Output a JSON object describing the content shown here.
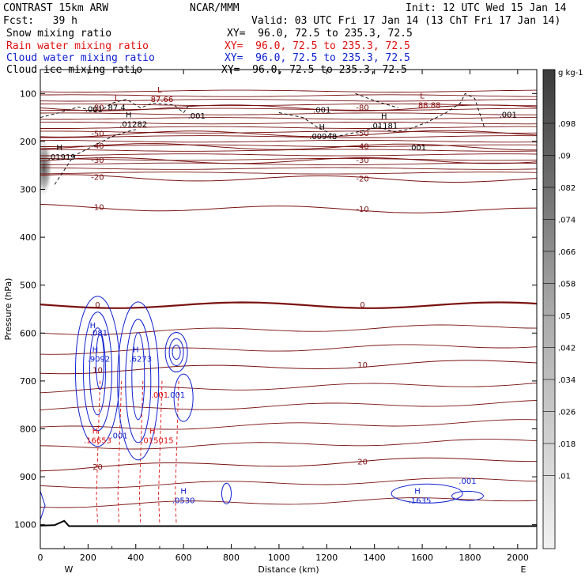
{
  "header": {
    "model": "CONTRAST 15km ARW",
    "source": "NCAR/MMM",
    "init": "Init: 12 UTC Wed 15 Jan 14",
    "fcst": "Fcst:   39 h",
    "valid": "Valid: 03 UTC Fri 17 Jan 14 (13 ChT Fri 17 Jan 14)",
    "fields": [
      {
        "label": "Snow mixing ratio",
        "xy": "XY=  96.0, 72.5 to 235.3, 72.5",
        "color": "#000000"
      },
      {
        "label": "Rain water mixing ratio",
        "xy": "XY=  96.0, 72.5 to 235.3, 72.5",
        "color": "#e01010"
      },
      {
        "label": "Cloud water mixing ratio",
        "xy": "XY=  96.0, 72.5 to 235.3, 72.5",
        "color": "#1020d0"
      },
      {
        "label": "Cloud ice mixing ratio",
        "xy": "XY=  96.0, 72.5 to 235.3, 72.5",
        "color": "#000000"
      }
    ]
  },
  "chart_data": {
    "type": "cross-section contour",
    "xlabel": "Distance (km)",
    "ylabel": "Pressure (hPa)",
    "xlim": [
      0,
      2080
    ],
    "ylim_pressure": [
      1050,
      50
    ],
    "x_ticks": [
      0,
      200,
      400,
      600,
      800,
      1000,
      1200,
      1400,
      1600,
      1800,
      2000
    ],
    "y_ticks": [
      100,
      200,
      300,
      400,
      500,
      600,
      700,
      800,
      900,
      1000
    ],
    "west_label": "W",
    "east_label": "E",
    "colorbar": {
      "units": "g kg-1",
      "labels": [
        ".098",
        ".09",
        ".082",
        ".074",
        ".066",
        ".058",
        ".05",
        ".042",
        ".034",
        ".026",
        ".018",
        ".01"
      ]
    },
    "temperature_isotherms_pressure": [
      {
        "label": "-80",
        "p_left": 130,
        "p_right": 130
      },
      {
        "label": "-50",
        "p_left": 185,
        "p_right": 183
      },
      {
        "label": "-40",
        "p_left": 210,
        "p_right": 212
      },
      {
        "label": "-30",
        "p_left": 240,
        "p_right": 240
      },
      {
        "label": "-20",
        "p_left": 275,
        "p_right": 280
      },
      {
        "label": "-10",
        "p_left": 337,
        "p_right": 345
      },
      {
        "label": "0",
        "p_left": 542,
        "p_right": 542
      },
      {
        "label": "10",
        "p_left": 680,
        "p_right": 660
      },
      {
        "label": "20",
        "p_left": 882,
        "p_right": 862
      }
    ],
    "contour_labels": [
      {
        "text": "L",
        "x": 320,
        "p": 115,
        "color": "#8b0000"
      },
      {
        "text": "87.4",
        "x": 320,
        "p": 135,
        "color": "#000000"
      },
      {
        "text": "L",
        "x": 500,
        "p": 98,
        "color": "#8b0000"
      },
      {
        "text": "87.66",
        "x": 510,
        "p": 118,
        "color": "#8b0000"
      },
      {
        "text": "H",
        "x": 370,
        "p": 150,
        "color": "#000000"
      },
      {
        "text": ".01282",
        "x": 390,
        "p": 170,
        "color": "#000000"
      },
      {
        "text": ".001",
        "x": 225,
        "p": 138,
        "color": "#000000"
      },
      {
        "text": ".001",
        "x": 655,
        "p": 152,
        "color": "#000000"
      },
      {
        "text": ".001",
        "x": 1180,
        "p": 140,
        "color": "#000000"
      },
      {
        "text": "H",
        "x": 1180,
        "p": 175,
        "color": "#000000"
      },
      {
        "text": ".00948",
        "x": 1185,
        "p": 195,
        "color": "#000000"
      },
      {
        "text": "H",
        "x": 1440,
        "p": 153,
        "color": "#000000"
      },
      {
        "text": ".01181",
        "x": 1440,
        "p": 173,
        "color": "#000000"
      },
      {
        "text": "L",
        "x": 1600,
        "p": 110,
        "color": "#8b0000"
      },
      {
        "text": "88.88",
        "x": 1630,
        "p": 130,
        "color": "#8b0000"
      },
      {
        "text": ".001",
        "x": 1580,
        "p": 218,
        "color": "#000000"
      },
      {
        "text": ".001",
        "x": 1960,
        "p": 150,
        "color": "#000000"
      },
      {
        "text": "H",
        "x": 80,
        "p": 218,
        "color": "#000000"
      },
      {
        "text": ".01919",
        "x": 90,
        "p": 238,
        "color": "#000000"
      },
      {
        "text": "H",
        "x": 220,
        "p": 590,
        "color": "#1020d0"
      },
      {
        "text": ".081",
        "x": 245,
        "p": 605,
        "color": "#1020d0"
      },
      {
        "text": "H",
        "x": 230,
        "p": 640,
        "color": "#1020d0"
      },
      {
        "text": ".9092",
        "x": 245,
        "p": 660,
        "color": "#1020d0"
      },
      {
        "text": "H",
        "x": 400,
        "p": 640,
        "color": "#1020d0"
      },
      {
        "text": ".6273",
        "x": 420,
        "p": 660,
        "color": "#1020d0"
      },
      {
        "text": ".001",
        "x": 500,
        "p": 735,
        "color": "#e01010"
      },
      {
        "text": ".001",
        "x": 570,
        "p": 735,
        "color": "#1020d0"
      },
      {
        "text": "H",
        "x": 230,
        "p": 810,
        "color": "#e01010"
      },
      {
        "text": ".16653",
        "x": 240,
        "p": 830,
        "color": "#e01010"
      },
      {
        "text": ".001",
        "x": 330,
        "p": 820,
        "color": "#1020d0"
      },
      {
        "text": "H",
        "x": 470,
        "p": 810,
        "color": "#e01010"
      },
      {
        "text": ".015015",
        "x": 490,
        "p": 830,
        "color": "#e01010"
      },
      {
        "text": "H",
        "x": 600,
        "p": 935,
        "color": "#1020d0"
      },
      {
        "text": ".0530",
        "x": 600,
        "p": 955,
        "color": "#1020d0"
      },
      {
        "text": "H",
        "x": 1580,
        "p": 935,
        "color": "#1020d0"
      },
      {
        "text": ".1635",
        "x": 1590,
        "p": 955,
        "color": "#1020d0"
      },
      {
        "text": ".001",
        "x": 1790,
        "p": 915,
        "color": "#1020d0"
      }
    ]
  }
}
